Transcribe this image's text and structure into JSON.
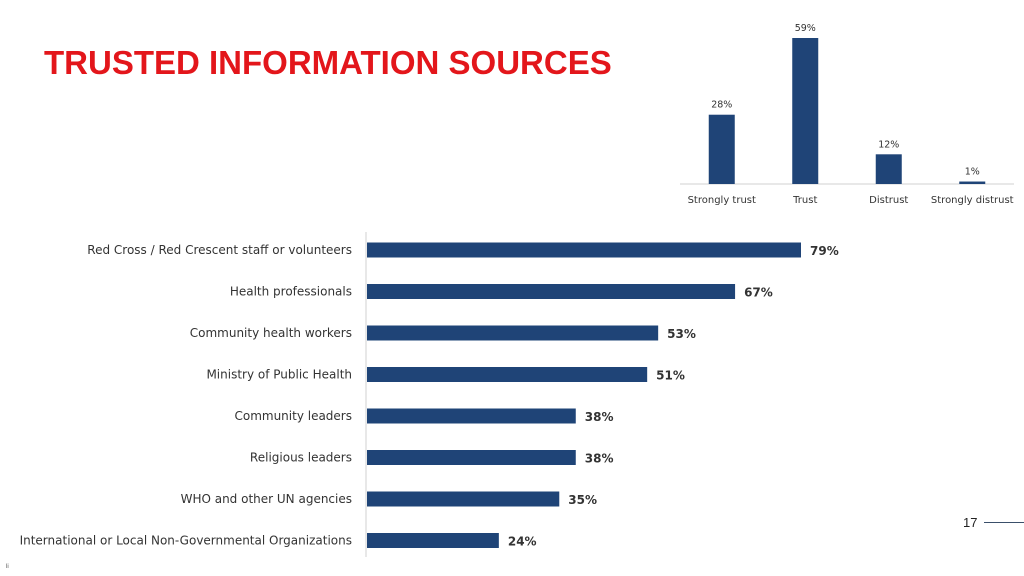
{
  "title": "TRUSTED INFORMATION SOURCES",
  "page_number": "17",
  "corner_mark": "li",
  "colors": {
    "bar": "#1f4477",
    "title": "#e3161b"
  },
  "chart_data": [
    {
      "type": "bar",
      "orientation": "vertical",
      "categories": [
        "Strongly trust",
        "Trust",
        "Distrust",
        "Strongly distrust"
      ],
      "values": [
        28,
        59,
        12,
        1
      ],
      "value_labels": [
        "28%",
        "59%",
        "12%",
        "1%"
      ],
      "ylim": [
        0,
        59
      ],
      "grid": false
    },
    {
      "type": "bar",
      "orientation": "horizontal",
      "categories": [
        "Red Cross / Red Crescent staff or volunteers",
        "Health professionals",
        "Community health workers",
        "Ministry of Public Health",
        "Community leaders",
        "Religious leaders",
        "WHO and other UN agencies",
        "International or Local Non-Governmental Organizations"
      ],
      "values": [
        79,
        67,
        53,
        51,
        38,
        38,
        35,
        24
      ],
      "value_labels": [
        "79%",
        "67%",
        "53%",
        "51%",
        "38%",
        "38%",
        "35%",
        "24%"
      ],
      "xlim": [
        0,
        79
      ],
      "grid": false
    }
  ]
}
